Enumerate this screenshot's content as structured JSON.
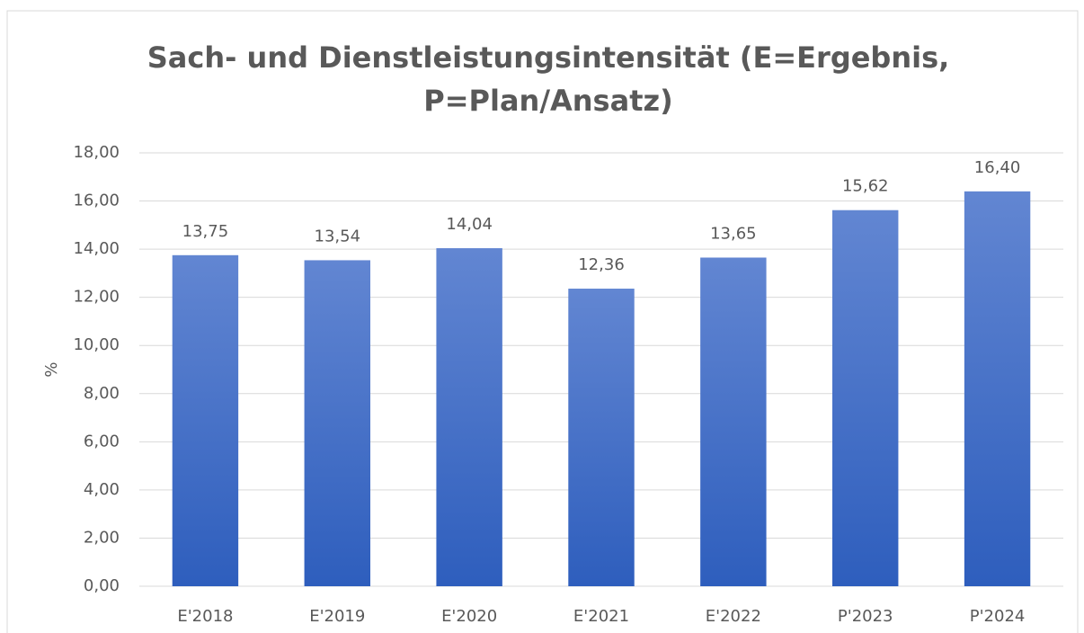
{
  "chart_data": {
    "type": "bar",
    "title": "Sach- und Dienstleistungsintensität (E=Ergebnis,\nP=Plan/Ansatz)",
    "y_label": "%",
    "categories": [
      "E'2018",
      "E'2019",
      "E'2020",
      "E'2021",
      "E'2022",
      "P'2023",
      "P'2024"
    ],
    "values": [
      13.75,
      13.54,
      14.04,
      12.36,
      13.65,
      15.62,
      16.4
    ],
    "value_labels": [
      "13,75",
      "13,54",
      "14,04",
      "12,36",
      "13,65",
      "15,62",
      "16,40"
    ],
    "color": "#4472c4",
    "ylim": [
      0,
      18
    ],
    "yticks": [
      {
        "value": 0,
        "label": "0,00"
      },
      {
        "value": 2,
        "label": "2,00"
      },
      {
        "value": 4,
        "label": "4,00"
      },
      {
        "value": 6,
        "label": "6,00"
      },
      {
        "value": 8,
        "label": "8,00"
      },
      {
        "value": 10,
        "label": "10,00"
      },
      {
        "value": 12,
        "label": "12,00"
      },
      {
        "value": 14,
        "label": "14,00"
      },
      {
        "value": 16,
        "label": "16,00"
      },
      {
        "value": 18,
        "label": "18,00"
      }
    ],
    "grid": true
  }
}
